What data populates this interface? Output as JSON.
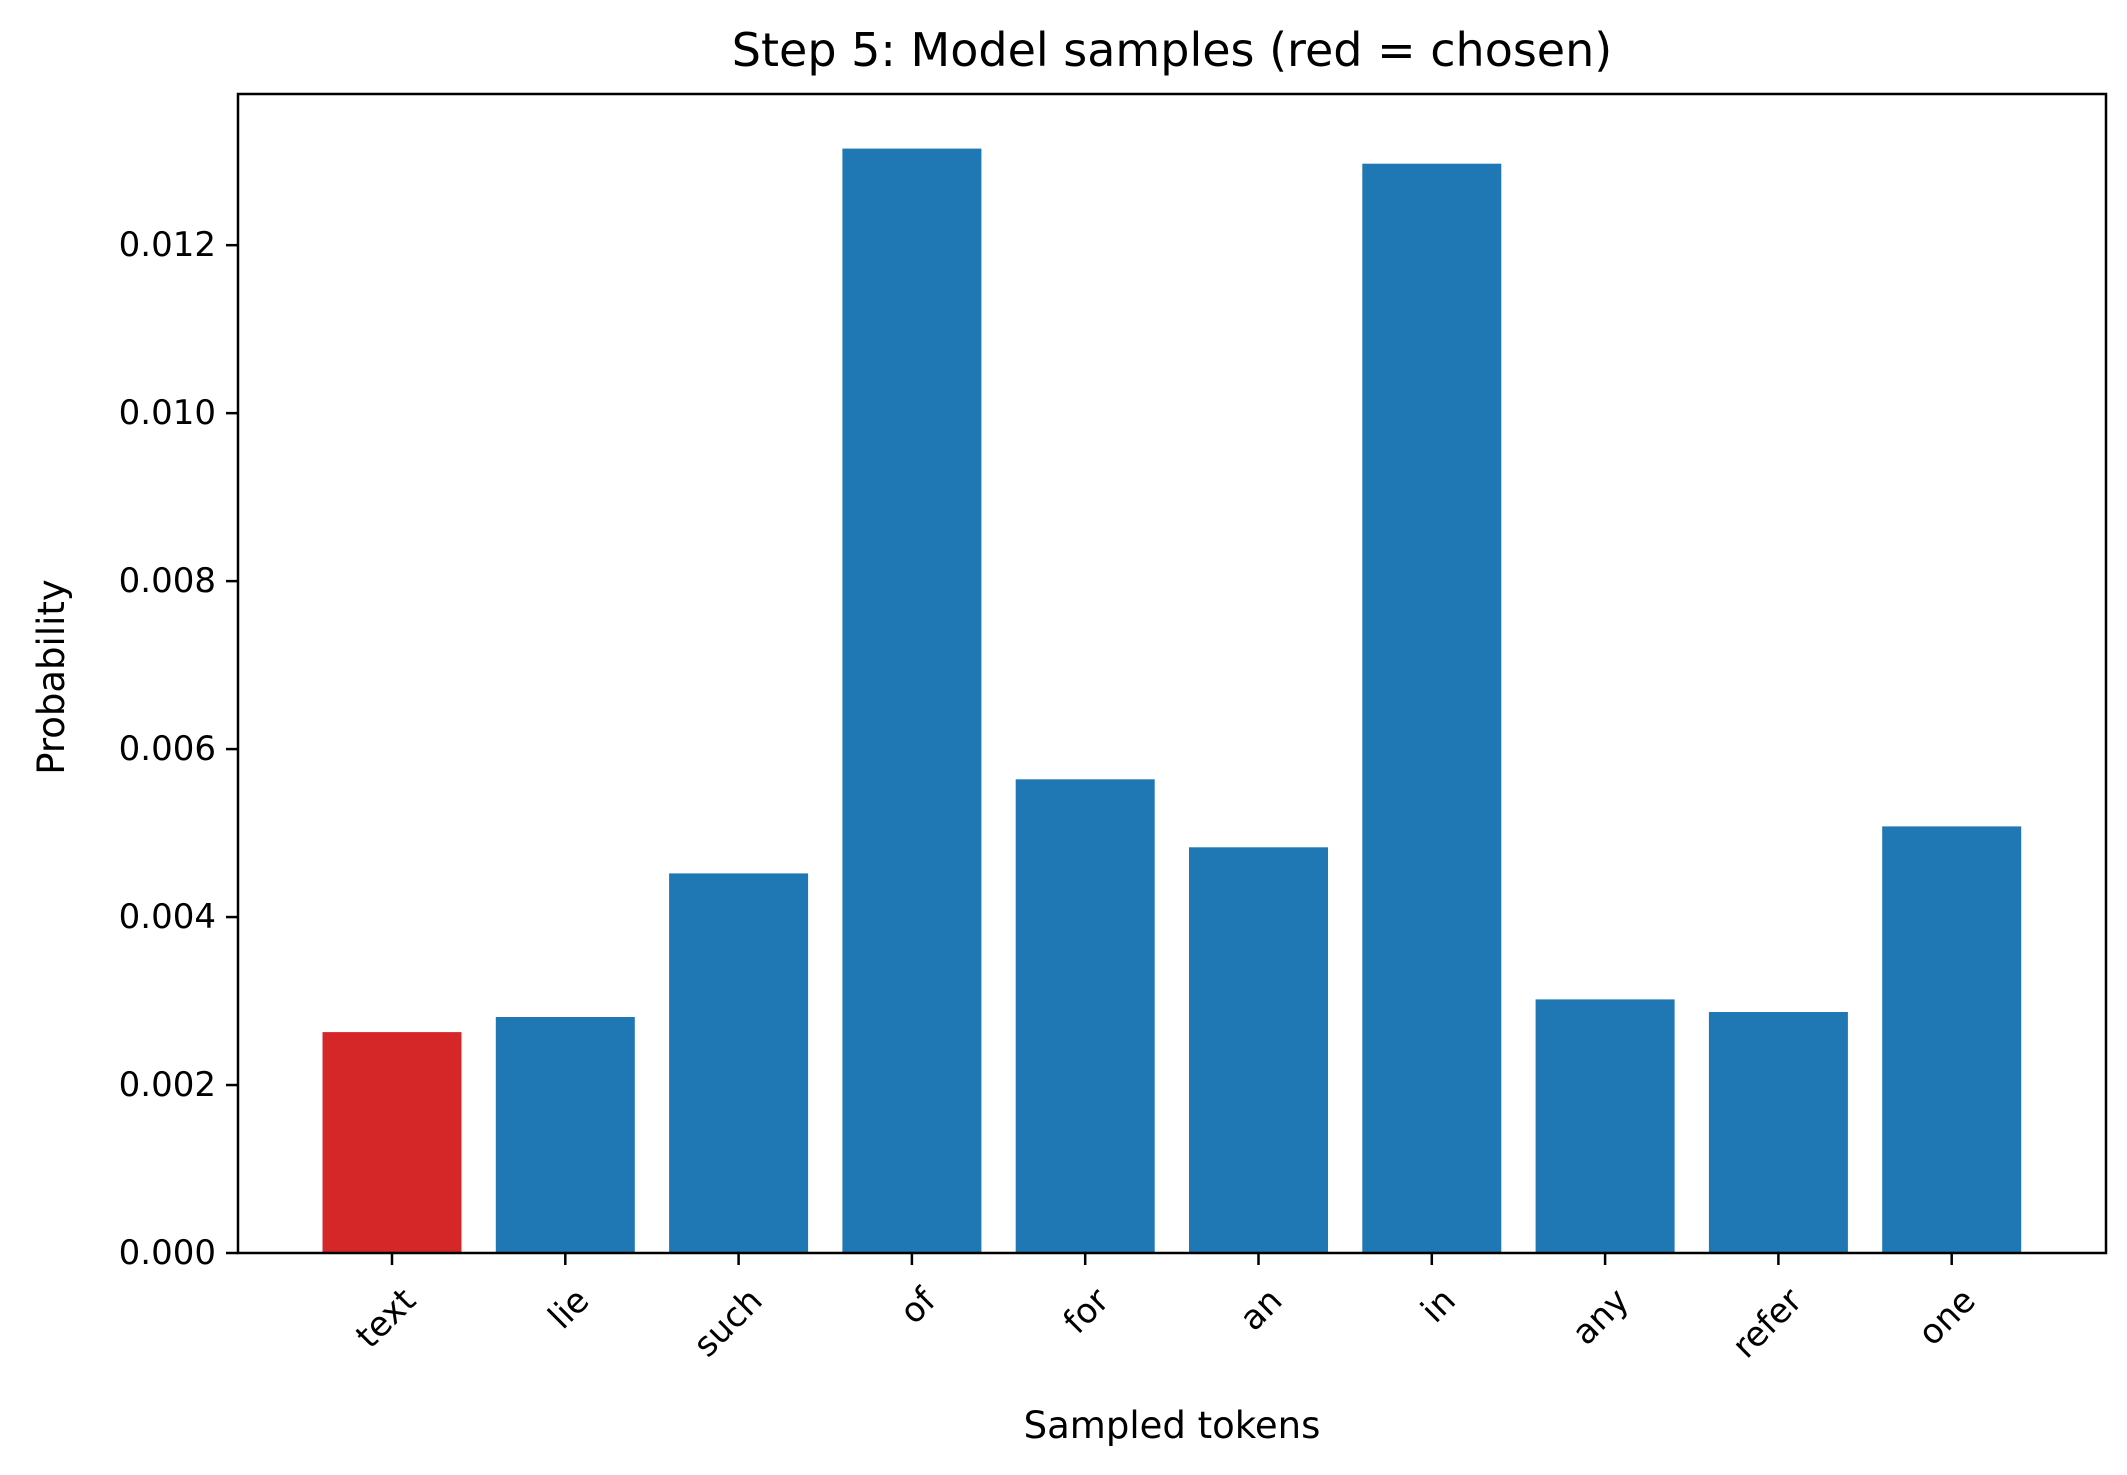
{
  "chart_data": {
    "type": "bar",
    "title": "Step 5: Model samples (red = chosen)",
    "xlabel": "Sampled tokens",
    "ylabel": "Probability",
    "categories": [
      "text",
      "lie",
      "such",
      "of",
      "for",
      "an",
      "in",
      "any",
      "refer",
      "one"
    ],
    "values": [
      0.00263,
      0.00281,
      0.00452,
      0.01315,
      0.00564,
      0.00483,
      0.01297,
      0.00302,
      0.00287,
      0.00508
    ],
    "chosen_index": 0,
    "ylim": [
      0,
      0.0138
    ],
    "yticks": [
      0.0,
      0.002,
      0.004,
      0.006,
      0.008,
      0.01,
      0.012
    ],
    "ytick_labels": [
      "0.000",
      "0.002",
      "0.004",
      "0.006",
      "0.008",
      "0.010",
      "0.012"
    ],
    "grid": false,
    "colors": {
      "default": "#1f77b4",
      "chosen": "#d62728"
    }
  }
}
